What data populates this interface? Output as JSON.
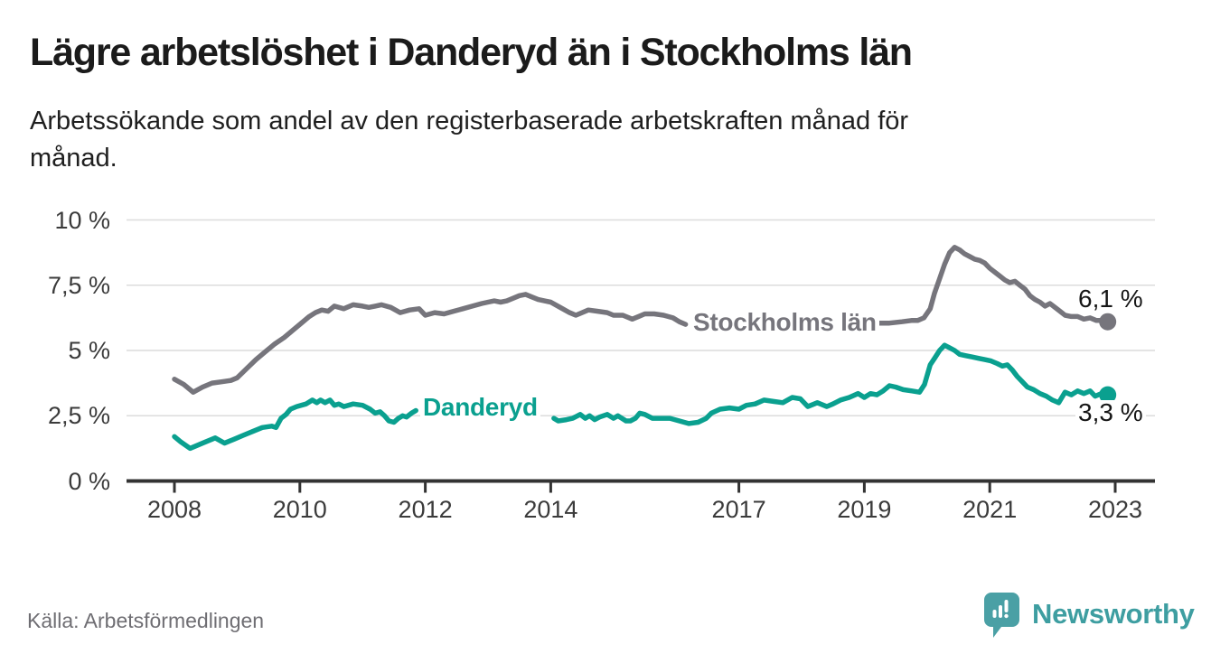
{
  "header": {
    "title": "Lägre arbetslöshet i Danderyd än i Stockholms län",
    "subtitle": "Arbetssökande som andel av den registerbaserade arbetskraften månad för\nmånad."
  },
  "chart_data": {
    "type": "line",
    "title": "Lägre arbetslöshet i Danderyd än i Stockholms län",
    "subtitle": "Arbetssökande som andel av den registerbaserade arbetskraften månad för månad.",
    "grid": true,
    "legend_position": "inline-on-lines",
    "x_axis": {
      "ticks": [
        2008,
        2010,
        2012,
        2014,
        2017,
        2019,
        2021,
        2023
      ],
      "labels": [
        "2008",
        "2010",
        "2012",
        "2014",
        "2017",
        "2019",
        "2021",
        "2023"
      ],
      "range": [
        2007.25,
        2023.65
      ]
    },
    "y_axis": {
      "ticks": [
        0,
        2.5,
        5,
        7.5,
        10
      ],
      "labels": [
        "0 %",
        "2,5 %",
        "5 %",
        "7,5 %",
        "10 %"
      ],
      "range": [
        0,
        10
      ],
      "unit": "%"
    },
    "series": [
      {
        "name": "Stockholms län",
        "color": "#76757c",
        "end_label": "6,1 %",
        "end_point": [
          2022.88,
          6.1
        ],
        "segments": [
          [
            [
              2008.0,
              3.9
            ],
            [
              2008.15,
              3.7
            ],
            [
              2008.3,
              3.4
            ],
            [
              2008.45,
              3.6
            ],
            [
              2008.6,
              3.75
            ],
            [
              2008.75,
              3.8
            ],
            [
              2008.9,
              3.85
            ],
            [
              2009.0,
              3.95
            ],
            [
              2009.15,
              4.3
            ],
            [
              2009.3,
              4.65
            ],
            [
              2009.45,
              4.95
            ],
            [
              2009.6,
              5.25
            ],
            [
              2009.75,
              5.5
            ],
            [
              2009.9,
              5.8
            ],
            [
              2010.0,
              6.0
            ],
            [
              2010.15,
              6.3
            ],
            [
              2010.25,
              6.45
            ],
            [
              2010.35,
              6.55
            ],
            [
              2010.45,
              6.5
            ],
            [
              2010.55,
              6.7
            ],
            [
              2010.7,
              6.6
            ],
            [
              2010.85,
              6.75
            ],
            [
              2011.0,
              6.7
            ],
            [
              2011.1,
              6.65
            ],
            [
              2011.2,
              6.7
            ],
            [
              2011.3,
              6.75
            ],
            [
              2011.45,
              6.65
            ],
            [
              2011.6,
              6.45
            ],
            [
              2011.75,
              6.55
            ],
            [
              2011.9,
              6.6
            ],
            [
              2012.0,
              6.35
            ],
            [
              2012.15,
              6.45
            ],
            [
              2012.3,
              6.4
            ],
            [
              2012.45,
              6.5
            ],
            [
              2012.6,
              6.6
            ],
            [
              2012.75,
              6.7
            ],
            [
              2012.9,
              6.8
            ],
            [
              2013.0,
              6.85
            ],
            [
              2013.1,
              6.9
            ],
            [
              2013.2,
              6.85
            ],
            [
              2013.3,
              6.9
            ],
            [
              2013.4,
              7.0
            ],
            [
              2013.5,
              7.1
            ],
            [
              2013.6,
              7.15
            ],
            [
              2013.7,
              7.05
            ],
            [
              2013.8,
              6.95
            ],
            [
              2013.9,
              6.9
            ],
            [
              2014.0,
              6.85
            ],
            [
              2014.15,
              6.65
            ],
            [
              2014.3,
              6.45
            ],
            [
              2014.4,
              6.35
            ],
            [
              2014.5,
              6.45
            ],
            [
              2014.6,
              6.55
            ],
            [
              2014.75,
              6.5
            ],
            [
              2014.9,
              6.45
            ],
            [
              2015.0,
              6.35
            ],
            [
              2015.15,
              6.35
            ],
            [
              2015.3,
              6.2
            ],
            [
              2015.4,
              6.3
            ],
            [
              2015.5,
              6.4
            ],
            [
              2015.65,
              6.4
            ],
            [
              2015.8,
              6.35
            ],
            [
              2015.95,
              6.25
            ],
            [
              2016.05,
              6.1
            ],
            [
              2016.15,
              6.0
            ]
          ],
          [
            [
              2019.2,
              6.05
            ],
            [
              2019.4,
              6.05
            ],
            [
              2019.6,
              6.1
            ],
            [
              2019.75,
              6.15
            ],
            [
              2019.85,
              6.15
            ],
            [
              2019.95,
              6.25
            ],
            [
              2020.05,
              6.6
            ],
            [
              2020.12,
              7.2
            ],
            [
              2020.2,
              7.75
            ],
            [
              2020.28,
              8.3
            ],
            [
              2020.36,
              8.75
            ],
            [
              2020.44,
              8.95
            ],
            [
              2020.52,
              8.85
            ],
            [
              2020.6,
              8.7
            ],
            [
              2020.68,
              8.6
            ],
            [
              2020.76,
              8.5
            ],
            [
              2020.84,
              8.45
            ],
            [
              2020.92,
              8.35
            ],
            [
              2021.0,
              8.15
            ],
            [
              2021.08,
              8.0
            ],
            [
              2021.16,
              7.85
            ],
            [
              2021.24,
              7.7
            ],
            [
              2021.32,
              7.6
            ],
            [
              2021.4,
              7.65
            ],
            [
              2021.48,
              7.5
            ],
            [
              2021.56,
              7.35
            ],
            [
              2021.64,
              7.1
            ],
            [
              2021.72,
              6.95
            ],
            [
              2021.8,
              6.85
            ],
            [
              2021.88,
              6.7
            ],
            [
              2021.96,
              6.8
            ],
            [
              2022.04,
              6.65
            ],
            [
              2022.12,
              6.5
            ],
            [
              2022.2,
              6.35
            ],
            [
              2022.3,
              6.3
            ],
            [
              2022.4,
              6.3
            ],
            [
              2022.5,
              6.2
            ],
            [
              2022.6,
              6.25
            ],
            [
              2022.7,
              6.15
            ],
            [
              2022.78,
              6.15
            ],
            [
              2022.88,
              6.1
            ]
          ]
        ]
      },
      {
        "name": "Danderyd",
        "color": "#0aa08f",
        "end_label": "3,3 %",
        "end_point": [
          2022.88,
          3.3
        ],
        "segments": [
          [
            [
              2008.0,
              1.7
            ],
            [
              2008.1,
              1.5
            ],
            [
              2008.25,
              1.25
            ],
            [
              2008.45,
              1.45
            ],
            [
              2008.65,
              1.65
            ],
            [
              2008.8,
              1.45
            ],
            [
              2008.95,
              1.6
            ],
            [
              2009.1,
              1.75
            ],
            [
              2009.25,
              1.9
            ],
            [
              2009.4,
              2.05
            ],
            [
              2009.55,
              2.1
            ],
            [
              2009.62,
              2.05
            ],
            [
              2009.7,
              2.4
            ],
            [
              2009.78,
              2.55
            ],
            [
              2009.85,
              2.75
            ],
            [
              2009.95,
              2.85
            ],
            [
              2010.1,
              2.95
            ],
            [
              2010.2,
              3.1
            ],
            [
              2010.27,
              3.0
            ],
            [
              2010.33,
              3.1
            ],
            [
              2010.4,
              3.0
            ],
            [
              2010.48,
              3.1
            ],
            [
              2010.55,
              2.9
            ],
            [
              2010.62,
              2.95
            ],
            [
              2010.7,
              2.85
            ],
            [
              2010.85,
              2.95
            ],
            [
              2011.0,
              2.9
            ],
            [
              2011.12,
              2.75
            ],
            [
              2011.2,
              2.6
            ],
            [
              2011.28,
              2.65
            ],
            [
              2011.35,
              2.5
            ],
            [
              2011.42,
              2.3
            ],
            [
              2011.5,
              2.25
            ],
            [
              2011.57,
              2.4
            ],
            [
              2011.64,
              2.5
            ],
            [
              2011.7,
              2.45
            ],
            [
              2011.78,
              2.6
            ],
            [
              2011.85,
              2.7
            ]
          ],
          [
            [
              2014.05,
              2.4
            ],
            [
              2014.12,
              2.3
            ],
            [
              2014.25,
              2.35
            ],
            [
              2014.35,
              2.4
            ],
            [
              2014.47,
              2.55
            ],
            [
              2014.55,
              2.4
            ],
            [
              2014.62,
              2.5
            ],
            [
              2014.7,
              2.35
            ],
            [
              2014.78,
              2.45
            ],
            [
              2014.9,
              2.55
            ],
            [
              2015.0,
              2.4
            ],
            [
              2015.07,
              2.5
            ],
            [
              2015.2,
              2.3
            ],
            [
              2015.27,
              2.3
            ],
            [
              2015.35,
              2.4
            ],
            [
              2015.42,
              2.6
            ],
            [
              2015.5,
              2.55
            ],
            [
              2015.62,
              2.4
            ],
            [
              2015.75,
              2.4
            ],
            [
              2015.9,
              2.4
            ],
            [
              2016.05,
              2.3
            ],
            [
              2016.2,
              2.2
            ],
            [
              2016.35,
              2.25
            ],
            [
              2016.48,
              2.4
            ],
            [
              2016.56,
              2.6
            ],
            [
              2016.7,
              2.75
            ],
            [
              2016.85,
              2.8
            ],
            [
              2017.0,
              2.75
            ],
            [
              2017.12,
              2.9
            ],
            [
              2017.26,
              2.95
            ],
            [
              2017.4,
              3.1
            ],
            [
              2017.55,
              3.05
            ],
            [
              2017.7,
              3.0
            ],
            [
              2017.85,
              3.2
            ],
            [
              2017.98,
              3.15
            ],
            [
              2018.1,
              2.85
            ],
            [
              2018.25,
              3.0
            ],
            [
              2018.4,
              2.85
            ],
            [
              2018.5,
              2.95
            ],
            [
              2018.62,
              3.1
            ],
            [
              2018.76,
              3.2
            ],
            [
              2018.9,
              3.35
            ],
            [
              2019.0,
              3.2
            ],
            [
              2019.1,
              3.35
            ],
            [
              2019.2,
              3.3
            ],
            [
              2019.3,
              3.45
            ],
            [
              2019.4,
              3.65
            ],
            [
              2019.5,
              3.6
            ],
            [
              2019.62,
              3.5
            ],
            [
              2019.76,
              3.45
            ],
            [
              2019.88,
              3.4
            ],
            [
              2019.96,
              3.7
            ],
            [
              2020.05,
              4.45
            ],
            [
              2020.12,
              4.7
            ],
            [
              2020.2,
              5.0
            ],
            [
              2020.28,
              5.2
            ],
            [
              2020.36,
              5.1
            ],
            [
              2020.44,
              5.0
            ],
            [
              2020.52,
              4.85
            ],
            [
              2020.62,
              4.8
            ],
            [
              2020.72,
              4.75
            ],
            [
              2020.82,
              4.7
            ],
            [
              2020.92,
              4.65
            ],
            [
              2021.02,
              4.6
            ],
            [
              2021.12,
              4.5
            ],
            [
              2021.2,
              4.4
            ],
            [
              2021.28,
              4.45
            ],
            [
              2021.36,
              4.25
            ],
            [
              2021.44,
              4.0
            ],
            [
              2021.52,
              3.8
            ],
            [
              2021.6,
              3.6
            ],
            [
              2021.7,
              3.5
            ],
            [
              2021.8,
              3.35
            ],
            [
              2021.9,
              3.25
            ],
            [
              2022.0,
              3.1
            ],
            [
              2022.1,
              3.0
            ],
            [
              2022.2,
              3.4
            ],
            [
              2022.3,
              3.3
            ],
            [
              2022.4,
              3.45
            ],
            [
              2022.5,
              3.35
            ],
            [
              2022.6,
              3.45
            ],
            [
              2022.68,
              3.25
            ],
            [
              2022.78,
              3.35
            ],
            [
              2022.88,
              3.3
            ]
          ]
        ]
      }
    ]
  },
  "footer": {
    "source": "Källa: Arbetsförmedlingen",
    "brand": "Newsworthy",
    "brand_color": "#3e9ea1",
    "logo_icon": "speech-bubble-bar-chart-icon",
    "logo_color": "#4aa0a5"
  }
}
